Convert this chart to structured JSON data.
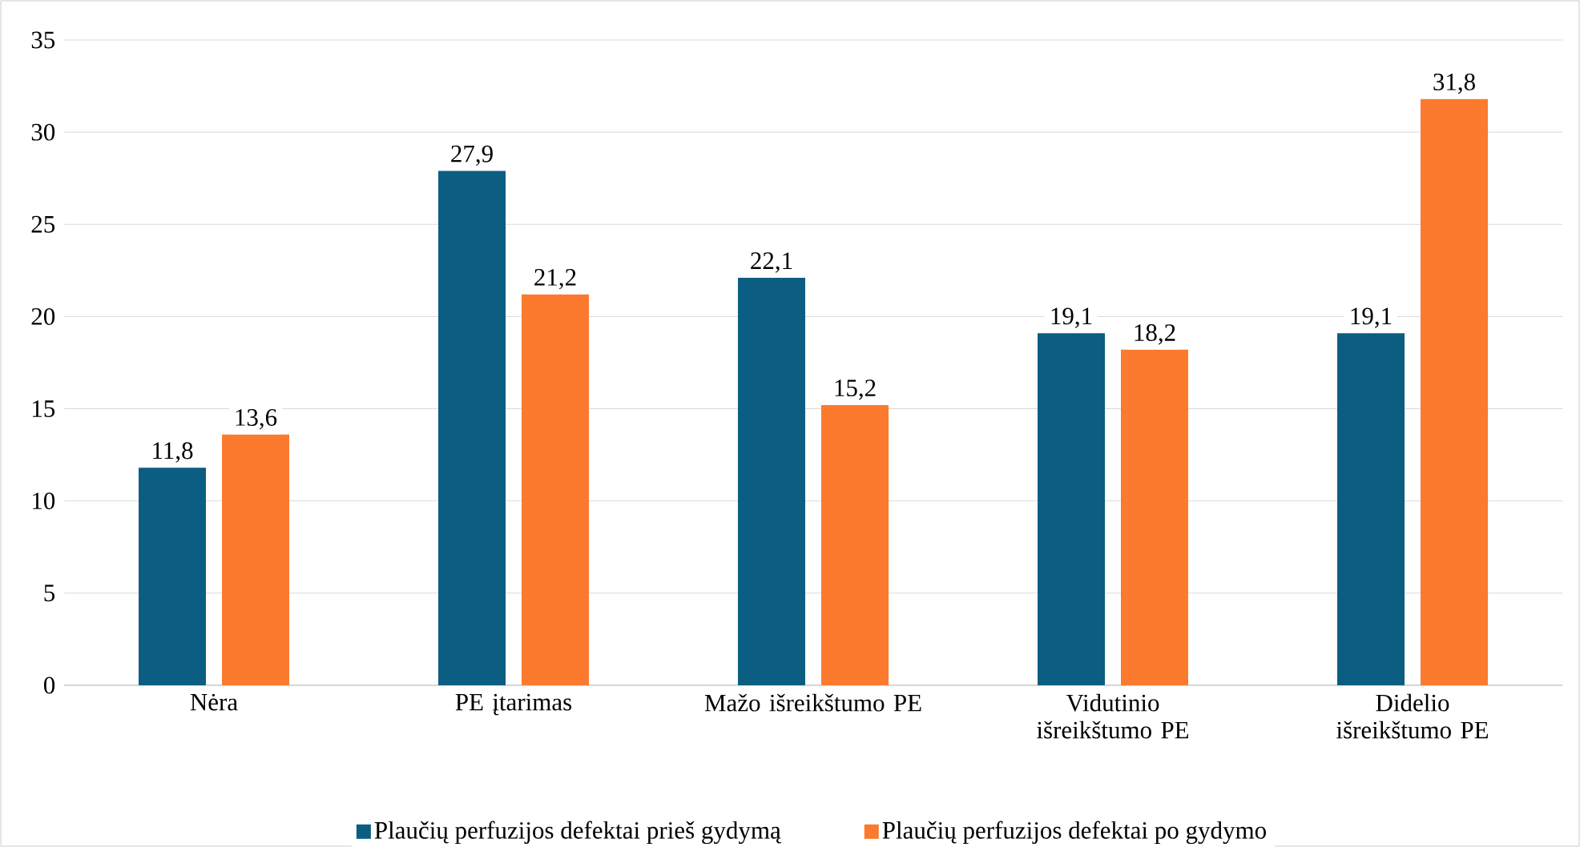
{
  "chart_data": {
    "type": "bar",
    "categories": [
      "Nėra",
      "PE įtarimas",
      "Mažo išreikštumo PE",
      "Vidutinio išreikštumo PE",
      "Didelio išreikštumo PE"
    ],
    "series": [
      {
        "name": "Plaučių perfuzijos defektai prieš gydymą",
        "color": "#0b5d82",
        "values": [
          11.8,
          27.9,
          22.1,
          19.1,
          19.1
        ],
        "value_labels": [
          "11,8",
          "27,9",
          "22,1",
          "19,1",
          "19,1"
        ]
      },
      {
        "name": "Plaučių perfuzijos defektai po gydymo",
        "color": "#fb7a2e",
        "values": [
          13.6,
          21.2,
          15.2,
          18.2,
          31.8
        ],
        "value_labels": [
          "13,6",
          "21,2",
          "15,2",
          "18,2",
          "31,8"
        ]
      }
    ],
    "ylim": [
      0,
      35
    ],
    "yticks": [
      0,
      5,
      10,
      15,
      20,
      25,
      30,
      35
    ],
    "grid": "y",
    "legend": "bottom"
  }
}
